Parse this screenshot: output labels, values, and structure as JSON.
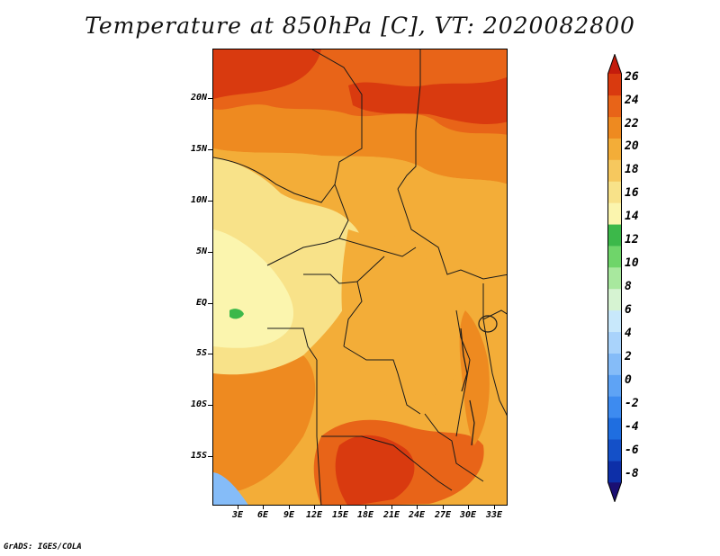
{
  "title": "Temperature at 850hPa [C], VT: 2020082800",
  "lat_labels": [
    "20N",
    "15N",
    "10N",
    "5N",
    "EQ",
    "5S",
    "10S",
    "15S"
  ],
  "lon_labels": [
    "3E",
    "6E",
    "9E",
    "12E",
    "15E",
    "18E",
    "21E",
    "24E",
    "27E",
    "30E",
    "33E"
  ],
  "colorbar": {
    "labels": [
      "26",
      "24",
      "22",
      "20",
      "18",
      "16",
      "14",
      "12",
      "10",
      "8",
      "6",
      "4",
      "2",
      "0",
      "-2",
      "-4",
      "-6",
      "-8"
    ],
    "colors": [
      "#1a0f73",
      "#0d2fa8",
      "#1450c8",
      "#1f6ee0",
      "#3d8bf0",
      "#5ea3f5",
      "#85bcf8",
      "#a9d3fb",
      "#c8e8fb",
      "#d6f3d2",
      "#a8e89e",
      "#6fd56a",
      "#3cb84a",
      "#fbf5ae",
      "#f8e289",
      "#f6c85e",
      "#f3ad38",
      "#ee8a20",
      "#e86418",
      "#d93a0f",
      "#c41c0c"
    ]
  },
  "credit": "GrADS: IGES/COLA"
}
